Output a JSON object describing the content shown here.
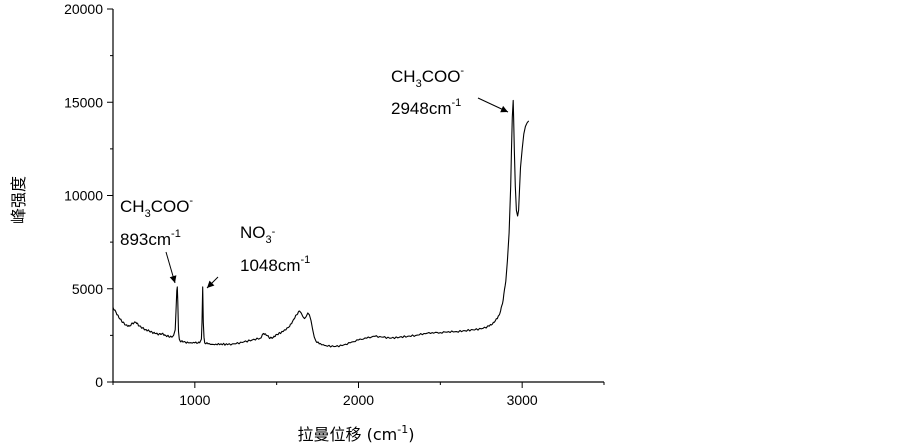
{
  "chart_data": {
    "type": "line",
    "title": "",
    "xlabel": "拉曼位移 (cm",
    "xlabel_sup": "-1",
    "xlabel_close": ")",
    "ylabel": "峰强度",
    "xlim": [
      500,
      3500
    ],
    "ylim": [
      0,
      20000
    ],
    "x_ticks": [
      1000,
      2000,
      3000
    ],
    "x_tick_labels": [
      "1000",
      "2000",
      "3000"
    ],
    "y_ticks": [
      0,
      5000,
      10000,
      15000,
      20000
    ],
    "y_tick_labels": [
      "0",
      "5000",
      "10000",
      "15000",
      "20000"
    ],
    "grid": false,
    "line_color": "#000000",
    "series": [
      {
        "x": [
          500,
          520,
          540,
          560,
          580,
          600,
          620,
          640,
          660,
          680,
          700,
          720,
          740,
          760,
          780,
          800,
          820,
          840,
          860,
          870,
          880,
          885,
          890,
          893,
          896,
          900,
          905,
          910,
          930,
          960,
          1000,
          1030,
          1040,
          1044,
          1048,
          1052,
          1056,
          1060,
          1080,
          1120,
          1160,
          1200,
          1250,
          1300,
          1350,
          1400,
          1420,
          1440,
          1460,
          1480,
          1500,
          1540,
          1580,
          1600,
          1620,
          1640,
          1650,
          1660,
          1670,
          1680,
          1690,
          1700,
          1710,
          1720,
          1730,
          1740,
          1760,
          1800,
          1850,
          1900,
          1950,
          2000,
          2050,
          2100,
          2150,
          2200,
          2250,
          2300,
          2350,
          2400,
          2450,
          2500,
          2550,
          2600,
          2650,
          2700,
          2750,
          2800,
          2830,
          2860,
          2880,
          2900,
          2910,
          2920,
          2930,
          2935,
          2940,
          2945,
          2948,
          2952,
          2958,
          2965,
          2972,
          2978,
          2984,
          2990,
          3000,
          3010,
          3020,
          3030,
          3040
        ],
        "y": [
          4000,
          3700,
          3400,
          3200,
          3050,
          3000,
          3150,
          3200,
          3000,
          2900,
          2800,
          2750,
          2650,
          2600,
          2550,
          2600,
          2500,
          2450,
          2400,
          2500,
          2800,
          3800,
          4900,
          5100,
          4300,
          2700,
          2300,
          2200,
          2150,
          2100,
          2100,
          2100,
          2300,
          3200,
          5100,
          3200,
          2400,
          2100,
          2050,
          2000,
          2050,
          2000,
          2050,
          2150,
          2250,
          2350,
          2600,
          2500,
          2350,
          2400,
          2550,
          2700,
          3000,
          3300,
          3600,
          3800,
          3700,
          3500,
          3400,
          3500,
          3700,
          3600,
          3300,
          2800,
          2400,
          2200,
          2050,
          1950,
          1900,
          1950,
          2100,
          2250,
          2350,
          2450,
          2400,
          2350,
          2400,
          2450,
          2500,
          2600,
          2650,
          2650,
          2700,
          2700,
          2750,
          2800,
          2850,
          3000,
          3200,
          3600,
          4200,
          5400,
          6500,
          8000,
          10500,
          12500,
          14200,
          15100,
          14000,
          12500,
          10500,
          9200,
          8900,
          9200,
          10300,
          11500,
          12500,
          13300,
          13700,
          13900,
          14000
        ]
      }
    ],
    "annotations": [
      {
        "id": "acetate-893",
        "line1_base": "CH",
        "line1_sub": "3",
        "line1_rest": "COO",
        "line1_sup": "-",
        "line2_base": "893cm",
        "line2_sup": "-1",
        "peak_x": 893,
        "peak_y": 5100
      },
      {
        "id": "nitrate-1048",
        "line1_base": "NO",
        "line1_sub": "3",
        "line1_rest": "",
        "line1_sup": "-",
        "line2_base": "1048cm",
        "line2_sup": "-1",
        "peak_x": 1048,
        "peak_y": 5100
      },
      {
        "id": "acetate-2948",
        "line1_base": "CH",
        "line1_sub": "3",
        "line1_rest": "COO",
        "line1_sup": "-",
        "line2_base": "2948cm",
        "line2_sup": "-1",
        "peak_x": 2948,
        "peak_y": 15100
      }
    ]
  }
}
